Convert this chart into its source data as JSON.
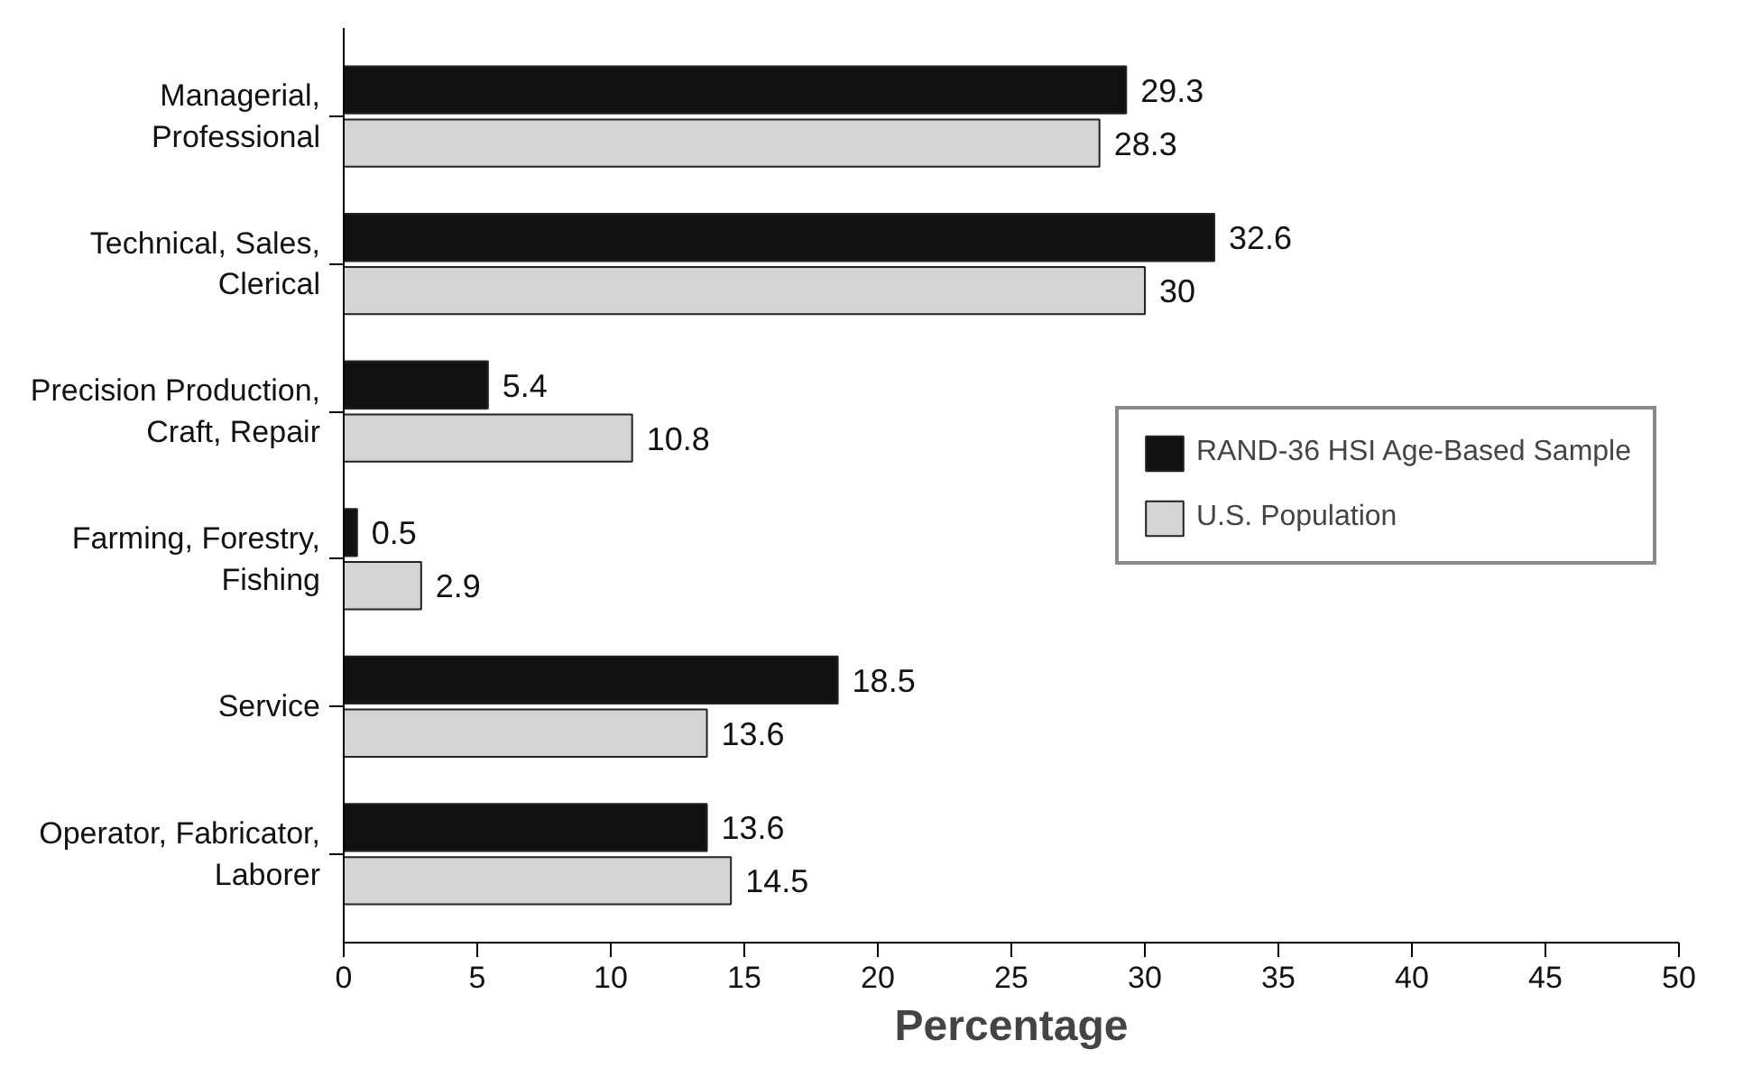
{
  "chart_data": {
    "type": "bar",
    "orientation": "horizontal",
    "xlabel": "Percentage",
    "categories": [
      "Managerial,\nProfessional",
      "Technical, Sales,\nClerical",
      "Precision Production,\nCraft, Repair",
      "Farming, Forestry,\nFishing",
      "Service",
      "Operator, Fabricator,\nLaborer"
    ],
    "series": [
      {
        "name": "RAND-36 HSI Age-Based Sample",
        "color": "#111111",
        "values": [
          29.3,
          32.6,
          5.4,
          0.5,
          18.5,
          13.6
        ]
      },
      {
        "name": "U.S. Population",
        "color": "#d4d4d4",
        "values": [
          28.3,
          30,
          10.8,
          2.9,
          13.6,
          14.5
        ]
      }
    ],
    "xlim": [
      0,
      50
    ],
    "xticks": [
      0,
      5,
      10,
      15,
      20,
      25,
      30,
      35,
      40,
      45,
      50
    ],
    "grid": false,
    "legend": "right",
    "data_labels": true
  }
}
